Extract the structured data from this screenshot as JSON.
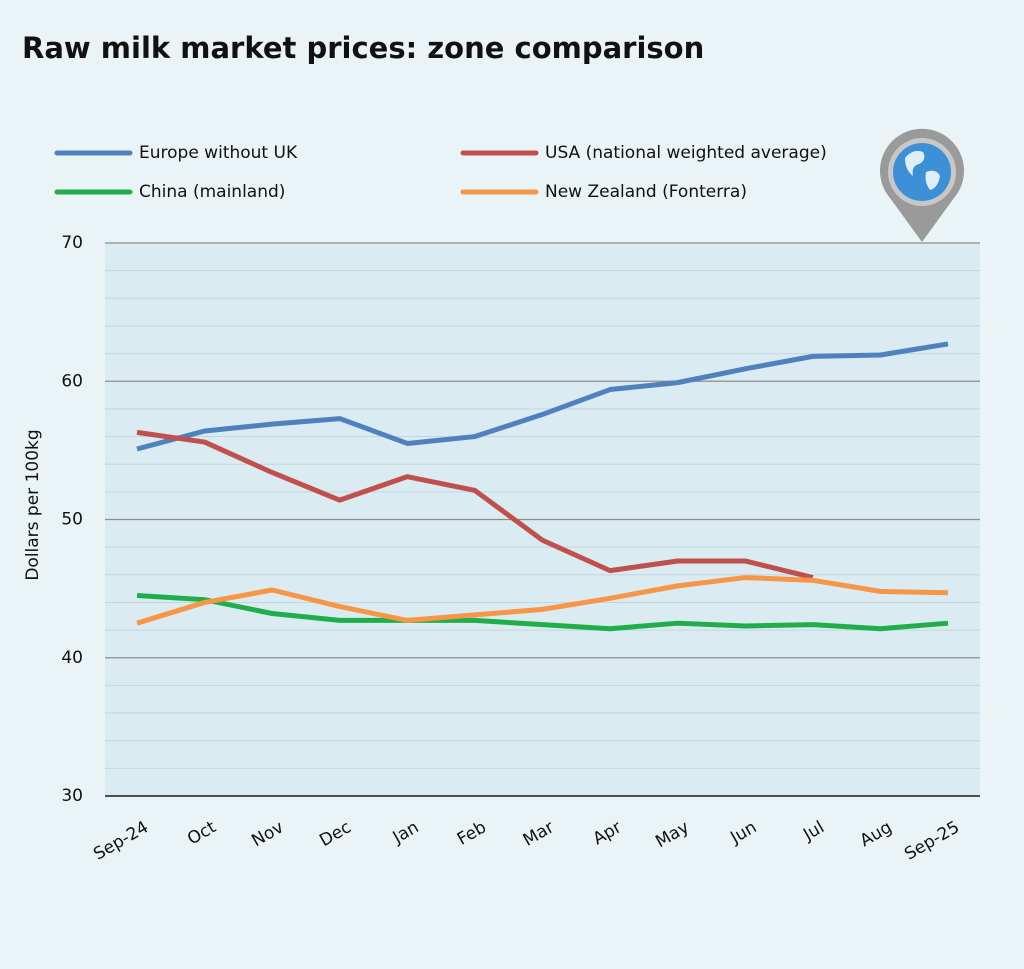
{
  "chart_data": {
    "type": "line",
    "title": "Raw milk market prices: zone comparison",
    "y_label": "Dollars per 100kg",
    "categories": [
      "Sep-24",
      "Oct",
      "Nov",
      "Dec",
      "Jan",
      "Feb",
      "Mar",
      "Apr",
      "May",
      "Jun",
      "Jul",
      "Aug",
      "Sep-25"
    ],
    "series": [
      {
        "name": "Europe without UK",
        "color": "#4f81bd",
        "values": [
          55.1,
          56.4,
          56.9,
          57.3,
          55.5,
          56.0,
          57.6,
          59.4,
          59.9,
          60.9,
          61.8,
          61.9,
          62.7
        ]
      },
      {
        "name": "USA (national weighted average)",
        "color": "#c0504d",
        "values": [
          56.3,
          55.6,
          53.4,
          51.4,
          53.1,
          52.1,
          48.5,
          46.3,
          47.0,
          47.0,
          45.8,
          null,
          null
        ]
      },
      {
        "name": "China (mainland)",
        "color": "#1fae4a",
        "values": [
          44.5,
          44.2,
          43.2,
          42.7,
          42.7,
          42.7,
          42.4,
          42.1,
          42.5,
          42.3,
          42.4,
          42.1,
          42.5
        ]
      },
      {
        "name": "New Zealand (Fonterra)",
        "color": "#f79646",
        "values": [
          42.5,
          44.0,
          44.9,
          43.7,
          42.7,
          43.1,
          43.5,
          44.3,
          45.2,
          45.8,
          45.6,
          44.8,
          44.7
        ]
      }
    ],
    "ylim": [
      30,
      70
    ],
    "yticks": [
      30,
      40,
      50,
      60,
      70
    ],
    "yminor": [
      32,
      34,
      36,
      38,
      42,
      44,
      46,
      48,
      52,
      54,
      56,
      58,
      62,
      64,
      66,
      68
    ],
    "grid": true,
    "legend": "top"
  }
}
